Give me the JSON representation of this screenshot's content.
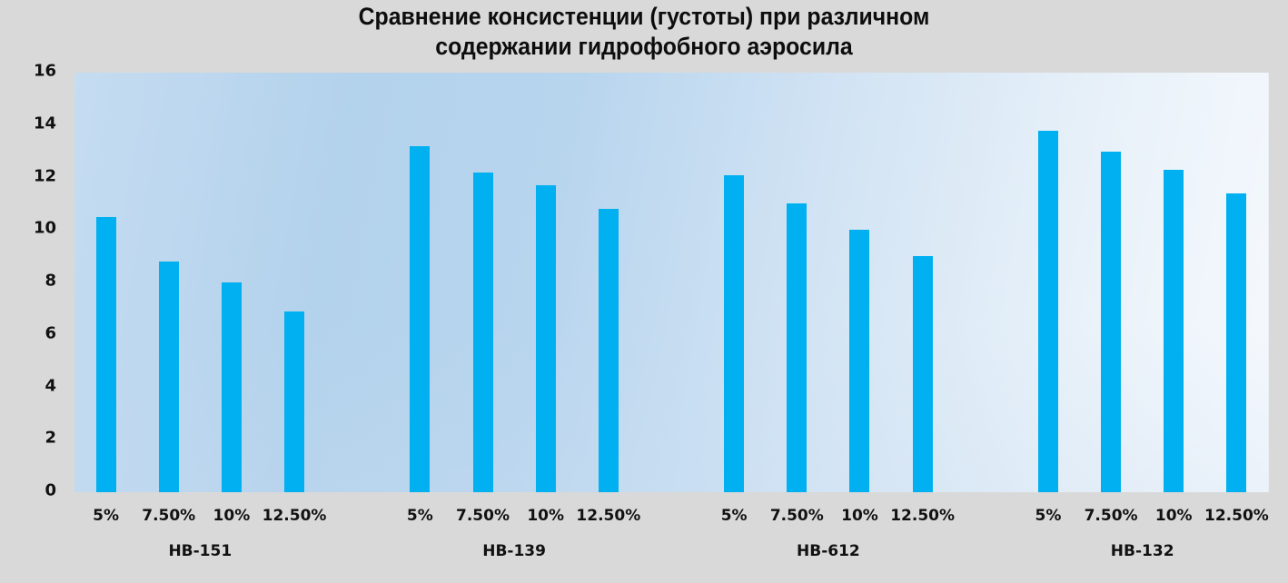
{
  "chart_data": {
    "type": "bar",
    "title": "Сравнение консистенции (густоты) при различном содержании гидрофобного аэросила",
    "title_lines": [
      "Сравнение консистенции (густоты) при различном",
      "содержании гидрофобного аэросила"
    ],
    "xlabel": "",
    "ylabel": "",
    "ylim": [
      0,
      16
    ],
    "yticks": [
      0,
      2,
      4,
      6,
      8,
      10,
      12,
      14,
      16
    ],
    "grid": false,
    "legend": null,
    "bar_color": "#00b0f0",
    "groups": [
      {
        "name": "HB-151",
        "categories": [
          "5%",
          "7.50%",
          "10%",
          "12.50%"
        ],
        "values": [
          10.5,
          8.8,
          8.0,
          6.9
        ]
      },
      {
        "name": "HB-139",
        "categories": [
          "5%",
          "7.50%",
          "10%",
          "12.50%"
        ],
        "values": [
          13.2,
          12.2,
          11.7,
          10.8
        ]
      },
      {
        "name": "HB-612",
        "categories": [
          "5%",
          "7.50%",
          "10%",
          "12.50%"
        ],
        "values": [
          12.1,
          11.0,
          10.0,
          9.0
        ]
      },
      {
        "name": "HB-132",
        "categories": [
          "5%",
          "7.50%",
          "10%",
          "12.50%"
        ],
        "values": [
          13.8,
          13.0,
          12.3,
          11.4
        ]
      }
    ]
  },
  "colors": {
    "background": "#d9d9d9",
    "bar": "#00b0f0",
    "text": "#111111"
  }
}
